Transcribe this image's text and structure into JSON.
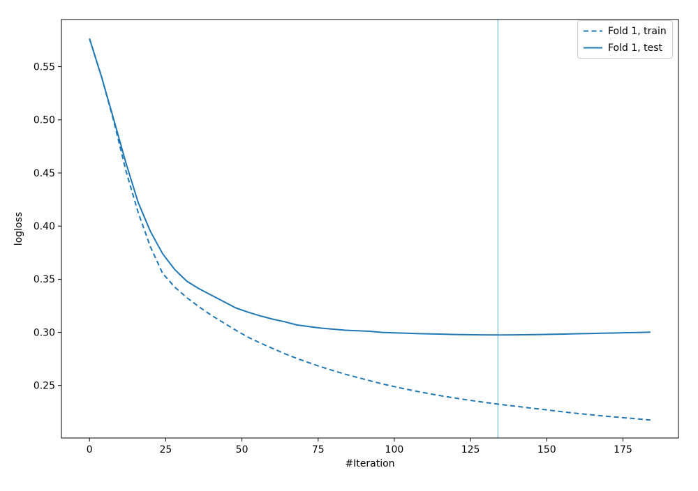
{
  "chart_data": {
    "type": "line",
    "title": "",
    "xlabel": "#Iteration",
    "ylabel": "logloss",
    "xlim": [
      -9.2,
      193.2
    ],
    "ylim": [
      0.2006,
      0.5944
    ],
    "x_ticks": [
      0,
      25,
      50,
      75,
      100,
      125,
      150,
      175
    ],
    "y_ticks": [
      0.25,
      0.3,
      0.35,
      0.4,
      0.45,
      0.5,
      0.55
    ],
    "grid": false,
    "colors": {
      "series": "#1f77b4",
      "vline": "#add8e6",
      "spine": "#000000",
      "background": "#ffffff",
      "legend_border": "#cccccc"
    },
    "vline_x": 134,
    "legend": {
      "position": "upper right",
      "entries": [
        {
          "label": "Fold 1, train",
          "style": "dashed"
        },
        {
          "label": "Fold 1, test",
          "style": "solid"
        }
      ]
    },
    "x": [
      0,
      4,
      8,
      12,
      16,
      20,
      24,
      28,
      32,
      36,
      40,
      44,
      48,
      52,
      56,
      60,
      64,
      68,
      72,
      76,
      80,
      84,
      88,
      92,
      96,
      100,
      104,
      108,
      112,
      116,
      120,
      124,
      128,
      132,
      136,
      140,
      144,
      148,
      152,
      156,
      160,
      164,
      168,
      172,
      176,
      180,
      184
    ],
    "series": [
      {
        "name": "Fold 1, train",
        "style": "dashed",
        "values": [
          0.5765,
          0.54,
          0.4985,
          0.4515,
          0.4125,
          0.3805,
          0.3555,
          0.3425,
          0.3325,
          0.324,
          0.316,
          0.309,
          0.302,
          0.2955,
          0.29,
          0.285,
          0.28,
          0.2755,
          0.2715,
          0.2675,
          0.264,
          0.2605,
          0.2575,
          0.2545,
          0.2515,
          0.249,
          0.2465,
          0.2442,
          0.242,
          0.24,
          0.2382,
          0.2364,
          0.2348,
          0.2332,
          0.2318,
          0.2304,
          0.229,
          0.2277,
          0.2263,
          0.225,
          0.2238,
          0.2226,
          0.2215,
          0.2205,
          0.2195,
          0.2185,
          0.2175
        ]
      },
      {
        "name": "Fold 1, test",
        "style": "solid",
        "values": [
          0.5765,
          0.54,
          0.5,
          0.459,
          0.422,
          0.395,
          0.374,
          0.359,
          0.348,
          0.341,
          0.335,
          0.329,
          0.323,
          0.319,
          0.3155,
          0.3125,
          0.31,
          0.307,
          0.3055,
          0.304,
          0.303,
          0.302,
          0.3015,
          0.301,
          0.3,
          0.2996,
          0.2992,
          0.2988,
          0.2986,
          0.2983,
          0.298,
          0.2978,
          0.2977,
          0.2976,
          0.2976,
          0.2977,
          0.2978,
          0.298,
          0.2982,
          0.2984,
          0.2987,
          0.2989,
          0.2992,
          0.2994,
          0.2997,
          0.2999,
          0.3002
        ]
      }
    ]
  }
}
